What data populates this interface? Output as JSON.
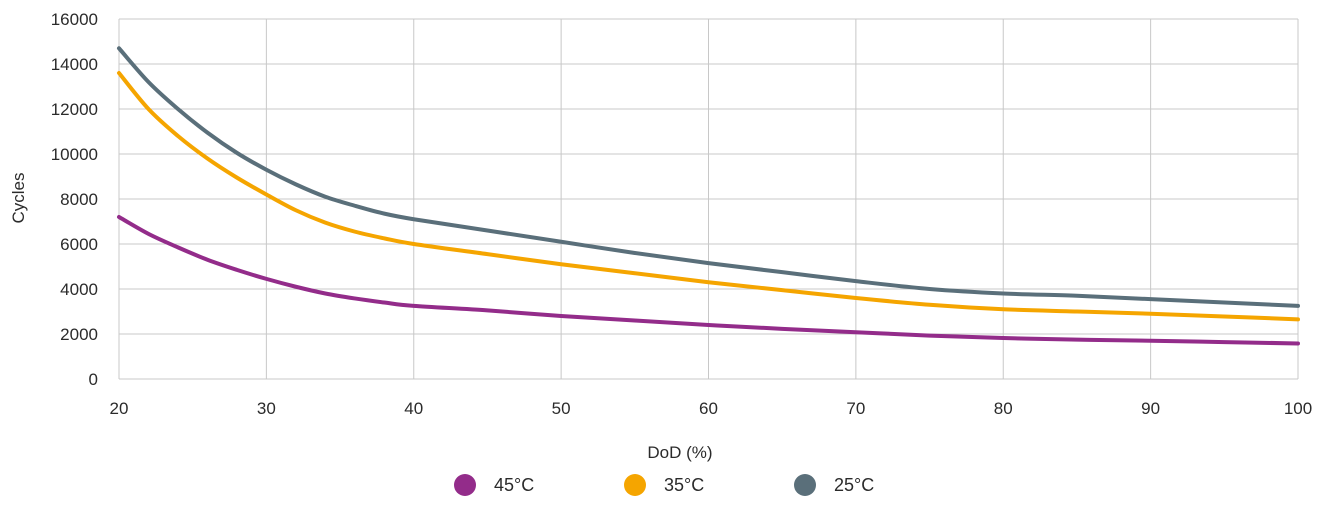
{
  "chart_data": {
    "type": "line",
    "title": "",
    "xlabel": "DoD (%)",
    "ylabel": "Cycles",
    "xlim": [
      20,
      100
    ],
    "ylim": [
      0,
      16000
    ],
    "x_ticks": [
      20,
      30,
      40,
      50,
      60,
      70,
      80,
      90,
      100
    ],
    "y_ticks": [
      0,
      2000,
      4000,
      6000,
      8000,
      10000,
      12000,
      14000,
      16000
    ],
    "grid": true,
    "legend_position": "bottom-center",
    "x": [
      20,
      22,
      24,
      26,
      28,
      30,
      32,
      34,
      36,
      38,
      40,
      45,
      50,
      55,
      60,
      65,
      70,
      75,
      80,
      85,
      90,
      95,
      100
    ],
    "series": [
      {
        "name": "45°C",
        "color": "#932c8a",
        "values": [
          7200,
          6450,
          5850,
          5300,
          4850,
          4450,
          4100,
          3800,
          3580,
          3400,
          3250,
          3050,
          2800,
          2600,
          2400,
          2230,
          2080,
          1930,
          1820,
          1750,
          1700,
          1640,
          1580
        ]
      },
      {
        "name": "35°C",
        "color": "#f5a500",
        "values": [
          13600,
          12000,
          10800,
          9800,
          8950,
          8200,
          7500,
          6950,
          6550,
          6250,
          6000,
          5550,
          5100,
          4700,
          4300,
          3950,
          3600,
          3300,
          3100,
          3000,
          2900,
          2780,
          2650
        ]
      },
      {
        "name": "25°C",
        "color": "#5a6f7a",
        "values": [
          14700,
          13200,
          12000,
          10950,
          10050,
          9300,
          8650,
          8100,
          7700,
          7350,
          7100,
          6600,
          6100,
          5600,
          5150,
          4750,
          4350,
          4000,
          3800,
          3700,
          3550,
          3400,
          3250
        ]
      }
    ]
  }
}
